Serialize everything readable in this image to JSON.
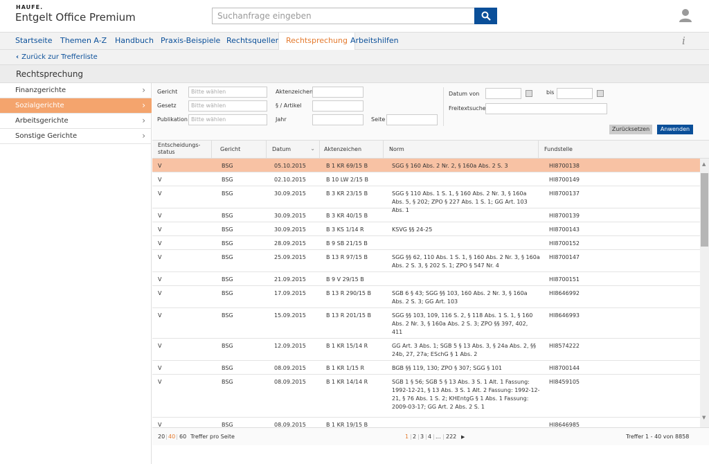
{
  "header": {
    "brand_top": "HAUFE.",
    "brand_name": "Entgelt Office Premium",
    "search_placeholder": "Suchanfrage eingeben"
  },
  "nav": {
    "items": [
      "Startseite",
      "Themen A-Z",
      "Handbuch",
      "Praxis-Beispiele",
      "Rechtsquellen",
      "Rechtsprechung",
      "Arbeitshilfen"
    ],
    "active": "Rechtsprechung"
  },
  "back_link": "Zurück zur Trefferliste",
  "page_title": "Rechtsprechung",
  "sidebar": {
    "items": [
      "Finanzgerichte",
      "Sozialgerichte",
      "Arbeitsgerichte",
      "Sonstige Gerichte"
    ],
    "active": "Sozialgerichte"
  },
  "filters": {
    "gericht_label": "Gericht",
    "gesetz_label": "Gesetz",
    "publikation_label": "Publikation",
    "placeholder": "Bitte wählen",
    "aktenzeichen_label": "Aktenzeichen",
    "artikel_label": "§ / Artikel",
    "jahr_label": "Jahr",
    "seite_label": "Seite",
    "datum_von_label": "Datum von",
    "bis_label": "bis",
    "freitext_label": "Freitextsuche",
    "reset_label": "Zurücksetzen",
    "apply_label": "Anwenden"
  },
  "table": {
    "headers": [
      "Entscheidungs-\nstatus",
      "Gericht",
      "Datum",
      "Aktenzeichen",
      "Norm",
      "Fundstelle"
    ],
    "rows": [
      {
        "status": "V",
        "gericht": "BSG",
        "datum": "05.10.2015",
        "az": "B 1 KR 69/15 B",
        "norm": "SGG § 160 Abs. 2 Nr. 2, § 160a Abs. 2 S. 3",
        "fund": "HI8700138"
      },
      {
        "status": "V",
        "gericht": "BSG",
        "datum": "02.10.2015",
        "az": "B 10 LW 2/15 B",
        "norm": "",
        "fund": "HI8700149"
      },
      {
        "status": "V",
        "gericht": "BSG",
        "datum": "30.09.2015",
        "az": "B 3 KR 23/15 B",
        "norm": "SGG § 110 Abs. 1 S. 1, § 160 Abs. 2 Nr. 3, § 160a Abs. 5, § 202; ZPO § 227 Abs. 1 S. 1; GG Art. 103 Abs. 1",
        "fund": "HI8700137"
      },
      {
        "status": "V",
        "gericht": "BSG",
        "datum": "30.09.2015",
        "az": "B 3 KR 40/15 B",
        "norm": "",
        "fund": "HI8700139"
      },
      {
        "status": "V",
        "gericht": "BSG",
        "datum": "30.09.2015",
        "az": "B 3 KS 1/14 R",
        "norm": "KSVG §§ 24-25",
        "fund": "HI8700143"
      },
      {
        "status": "V",
        "gericht": "BSG",
        "datum": "28.09.2015",
        "az": "B 9 SB 21/15 B",
        "norm": "",
        "fund": "HI8700152"
      },
      {
        "status": "V",
        "gericht": "BSG",
        "datum": "25.09.2015",
        "az": "B 13 R 97/15 B",
        "norm": "SGG §§ 62, 110 Abs. 1 S. 1, § 160 Abs. 2 Nr. 3, § 160a Abs. 2 S. 3, § 202 S. 1; ZPO § 547 Nr. 4",
        "fund": "HI8700147"
      },
      {
        "status": "V",
        "gericht": "BSG",
        "datum": "21.09.2015",
        "az": "B 9 V 29/15 B",
        "norm": "",
        "fund": "HI8700151"
      },
      {
        "status": "V",
        "gericht": "BSG",
        "datum": "17.09.2015",
        "az": "B 13 R 290/15 B",
        "norm": "SGB 6 § 43; SGG §§ 103, 160 Abs. 2 Nr. 3, § 160a Abs. 2 S. 3; GG Art. 103",
        "fund": "HI8646992"
      },
      {
        "status": "V",
        "gericht": "BSG",
        "datum": "15.09.2015",
        "az": "B 13 R 201/15 B",
        "norm": "SGG §§ 103, 109, 116 S. 2, § 118 Abs. 1 S. 1, § 160 Abs. 2 Nr. 3, § 160a Abs. 2 S. 3; ZPO §§ 397, 402, 411",
        "fund": "HI8646993"
      },
      {
        "status": "V",
        "gericht": "BSG",
        "datum": "12.09.2015",
        "az": "B 1 KR 15/14 R",
        "norm": "GG Art. 3 Abs. 1; SGB 5 § 13 Abs. 3, § 24a Abs. 2, §§ 24b, 27, 27a; ESchG § 1 Abs. 2",
        "fund": "HI8574222"
      },
      {
        "status": "V",
        "gericht": "BSG",
        "datum": "08.09.2015",
        "az": "B 1 KR 1/15 R",
        "norm": "BGB §§ 119, 130; ZPO § 307; SGG § 101",
        "fund": "HI8700144"
      },
      {
        "status": "V",
        "gericht": "BSG",
        "datum": "08.09.2015",
        "az": "B 1 KR 14/14 R",
        "norm": "SGB 1 § 56; SGB 5 § 13 Abs. 3 S. 1 Alt. 1 Fassung: 1992-12-21, § 13 Abs. 3 S. 1 Alt. 2 Fassung: 1992-12-21, § 76 Abs. 1 S. 2; KHEntgG § 1 Abs. 1 Fassung: 2009-03-17; GG Art. 2 Abs. 2 S. 1",
        "fund": "HI8459105"
      },
      {
        "status": "V",
        "gericht": "BSG",
        "datum": "08.09.2015",
        "az": "B 1 KR 19/15 B",
        "norm": "",
        "fund": "HI8646985"
      }
    ]
  },
  "footer": {
    "per_page_options": [
      "20",
      "40",
      "60"
    ],
    "per_page_selected": "40",
    "per_page_label": "Treffer pro Seite",
    "pages": [
      "1",
      "2",
      "3",
      "4",
      "...",
      "222"
    ],
    "current_page": "1",
    "next_icon": "next-arrow-icon",
    "summary": "Treffer 1 - 40 von 8858"
  },
  "colors": {
    "brand_blue": "#0a4f99",
    "accent_orange": "#e47a2e",
    "active_row": "#f8c2a4",
    "active_sidebar": "#f4a46d"
  }
}
